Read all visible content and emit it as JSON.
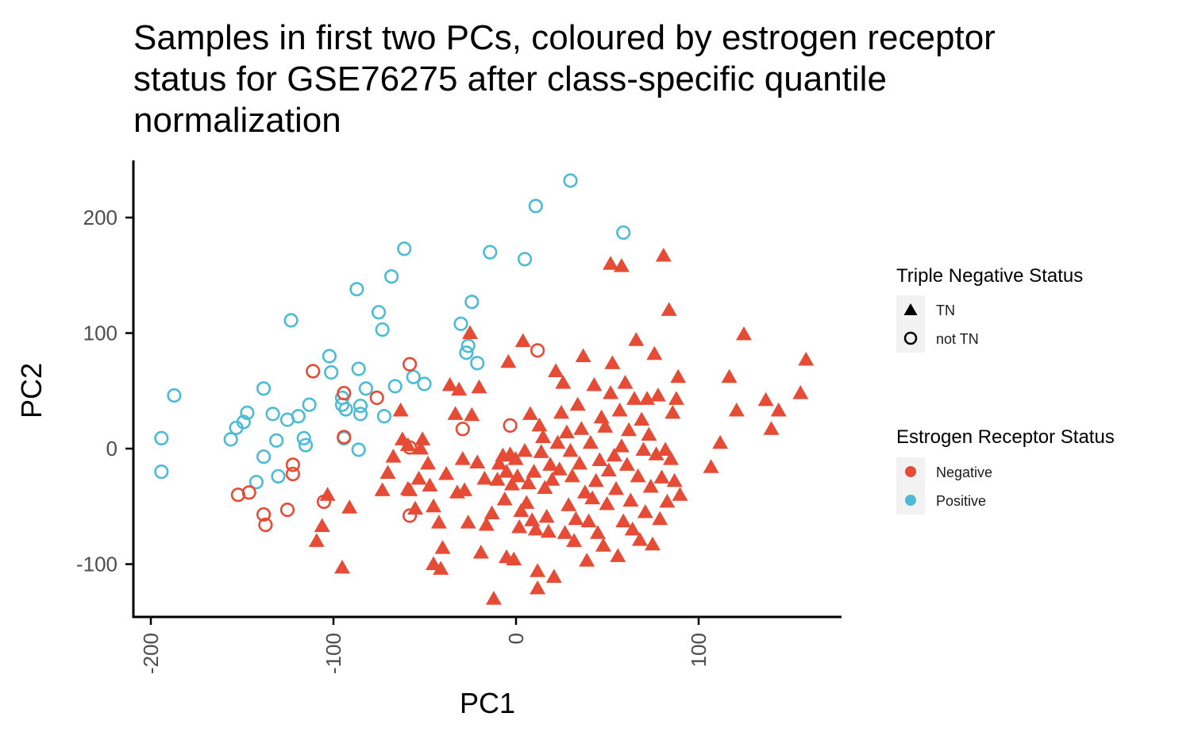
{
  "chart_data": {
    "type": "scatter",
    "title": "Samples in first two PCs, coloured by estrogen receptor status for GSE76275 after class-specific quantile normalization",
    "title_lines": [
      "Samples in first two PCs, coloured by estrogen receptor",
      "status for GSE76275 after class-specific quantile",
      "normalization"
    ],
    "xlabel": "PC1",
    "ylabel": "PC2",
    "xlim": [
      -205,
      180
    ],
    "ylim": [
      -145,
      250
    ],
    "x_ticks": [
      -200,
      -100,
      0,
      100
    ],
    "x_tick_labels": [
      "-200",
      "-100",
      "0",
      "100"
    ],
    "y_ticks": [
      -100,
      0,
      100,
      200
    ],
    "y_tick_labels": [
      "-100",
      "0",
      "100",
      "200"
    ],
    "grid": false,
    "legend_position": "right",
    "colors": {
      "Negative": "#E64B35",
      "Positive": "#4DBBD5"
    },
    "legends": [
      {
        "title": "Triple Negative Status",
        "entries": [
          {
            "label": "TN",
            "shape": "triangle"
          },
          {
            "label": "not TN",
            "shape": "circle-open"
          }
        ]
      },
      {
        "title": "Estrogen Receptor Status",
        "entries": [
          {
            "label": "Negative",
            "color": "#E64B35"
          },
          {
            "label": "Positive",
            "color": "#4DBBD5"
          }
        ]
      }
    ],
    "series": [
      {
        "er": "Positive",
        "tn": "not TN",
        "points": [
          [
            -189,
            -20
          ],
          [
            -189,
            9
          ],
          [
            -182,
            46
          ],
          [
            -151,
            8
          ],
          [
            -148,
            18
          ],
          [
            -144,
            23
          ],
          [
            -142,
            31
          ],
          [
            -137,
            -29
          ],
          [
            -133,
            -7
          ],
          [
            -133,
            52
          ],
          [
            -128,
            30
          ],
          [
            -126,
            7
          ],
          [
            -125,
            -24
          ],
          [
            -120,
            25
          ],
          [
            -118,
            111
          ],
          [
            -114,
            28
          ],
          [
            -111,
            9
          ],
          [
            -110,
            3
          ],
          [
            -108,
            38
          ],
          [
            -97,
            80
          ],
          [
            -96,
            66
          ],
          [
            -90,
            38
          ],
          [
            -90,
            44
          ],
          [
            -89,
            9
          ],
          [
            -88,
            34
          ],
          [
            -82,
            138
          ],
          [
            -81,
            69
          ],
          [
            -81,
            -1
          ],
          [
            -80,
            30
          ],
          [
            -80,
            37
          ],
          [
            -77,
            52
          ],
          [
            -70,
            118
          ],
          [
            -68,
            103
          ],
          [
            -67,
            28
          ],
          [
            -63,
            149
          ],
          [
            -61,
            54
          ],
          [
            -56,
            173
          ],
          [
            -51,
            62
          ],
          [
            -45,
            56
          ],
          [
            -25,
            108
          ],
          [
            -22,
            83
          ],
          [
            -21,
            89
          ],
          [
            -19,
            127
          ],
          [
            -16,
            74
          ],
          [
            -9,
            170
          ],
          [
            10,
            164
          ],
          [
            16,
            210
          ],
          [
            35,
            232
          ],
          [
            64,
            187
          ]
        ]
      },
      {
        "er": "Negative",
        "tn": "not TN",
        "points": [
          [
            -147,
            -40
          ],
          [
            -141,
            -38
          ],
          [
            -133,
            -57
          ],
          [
            -132,
            -66
          ],
          [
            -120,
            -53
          ],
          [
            -117,
            -22
          ],
          [
            -117,
            -14
          ],
          [
            -106,
            67
          ],
          [
            -100,
            -46
          ],
          [
            -89,
            48
          ],
          [
            -89,
            10
          ],
          [
            -71,
            44
          ],
          [
            -53,
            73
          ],
          [
            -53,
            1
          ],
          [
            -53,
            -58
          ],
          [
            -24,
            17
          ],
          [
            2,
            20
          ],
          [
            17,
            85
          ]
        ]
      },
      {
        "er": "Negative",
        "tn": "TN",
        "points": [
          [
            -104,
            -80
          ],
          [
            -101,
            -67
          ],
          [
            -98,
            -40
          ],
          [
            -90,
            -103
          ],
          [
            -86,
            -51
          ],
          [
            -68,
            -36
          ],
          [
            -65,
            -21
          ],
          [
            -62,
            -7
          ],
          [
            -58,
            33
          ],
          [
            -57,
            8
          ],
          [
            -54,
            3
          ],
          [
            -53,
            -36
          ],
          [
            -48,
            -26
          ],
          [
            -47,
            0
          ],
          [
            -46,
            8
          ],
          [
            -43,
            -13
          ],
          [
            -42,
            -32
          ],
          [
            -40,
            -50
          ],
          [
            -40,
            -100
          ],
          [
            -37,
            -64
          ],
          [
            -36,
            -104
          ],
          [
            -35,
            -86
          ],
          [
            -33,
            -22
          ],
          [
            -31,
            55
          ],
          [
            -28,
            30
          ],
          [
            -27,
            -38
          ],
          [
            -26,
            51
          ],
          [
            -24,
            -9
          ],
          [
            -23,
            -36
          ],
          [
            -21,
            -64
          ],
          [
            -20,
            100
          ],
          [
            -19,
            29
          ],
          [
            -16,
            -12
          ],
          [
            -15,
            53
          ],
          [
            -14,
            -90
          ],
          [
            -12,
            -26
          ],
          [
            -8,
            -56
          ],
          [
            -7,
            -130
          ],
          [
            -5,
            -27
          ],
          [
            -4,
            -13
          ],
          [
            -2,
            -6
          ],
          [
            -1,
            -44
          ],
          [
            0,
            -20
          ],
          [
            0,
            -94
          ],
          [
            1,
            75
          ],
          [
            2,
            -5
          ],
          [
            3,
            -31
          ],
          [
            4,
            -96
          ],
          [
            5,
            -9
          ],
          [
            6,
            -24
          ],
          [
            7,
            -68
          ],
          [
            8,
            -54
          ],
          [
            9,
            93
          ],
          [
            10,
            -2
          ],
          [
            11,
            -47
          ],
          [
            12,
            -30
          ],
          [
            13,
            30
          ],
          [
            14,
            -62
          ],
          [
            15,
            -20
          ],
          [
            16,
            -70
          ],
          [
            17,
            -106
          ],
          [
            17,
            -121
          ],
          [
            18,
            20
          ],
          [
            19,
            -3
          ],
          [
            20,
            10
          ],
          [
            21,
            -34
          ],
          [
            22,
            -59
          ],
          [
            23,
            -72
          ],
          [
            24,
            -14
          ],
          [
            25,
            -27
          ],
          [
            26,
            -111
          ],
          [
            27,
            67
          ],
          [
            28,
            5
          ],
          [
            29,
            -18
          ],
          [
            30,
            31
          ],
          [
            31,
            57
          ],
          [
            32,
            -73
          ],
          [
            33,
            14
          ],
          [
            34,
            -49
          ],
          [
            35,
            -2
          ],
          [
            36,
            -24
          ],
          [
            37,
            -80
          ],
          [
            38,
            -61
          ],
          [
            39,
            38
          ],
          [
            40,
            -13
          ],
          [
            41,
            17
          ],
          [
            42,
            80
          ],
          [
            43,
            -38
          ],
          [
            44,
            -97
          ],
          [
            45,
            -63
          ],
          [
            46,
            5
          ],
          [
            47,
            -43
          ],
          [
            48,
            55
          ],
          [
            49,
            -28
          ],
          [
            50,
            -73
          ],
          [
            51,
            -10
          ],
          [
            52,
            27
          ],
          [
            53,
            -84
          ],
          [
            54,
            19
          ],
          [
            55,
            -48
          ],
          [
            56,
            -19
          ],
          [
            57,
            48
          ],
          [
            58,
            74
          ],
          [
            59,
            -6
          ],
          [
            60,
            -35
          ],
          [
            61,
            -93
          ],
          [
            62,
            33
          ],
          [
            63,
            2
          ],
          [
            64,
            -63
          ],
          [
            65,
            57
          ],
          [
            66,
            -14
          ],
          [
            67,
            16
          ],
          [
            68,
            -45
          ],
          [
            69,
            -70
          ],
          [
            70,
            43
          ],
          [
            71,
            94
          ],
          [
            72,
            -24
          ],
          [
            73,
            -79
          ],
          [
            74,
            25
          ],
          [
            75,
            -1
          ],
          [
            76,
            -55
          ],
          [
            77,
            43
          ],
          [
            78,
            12
          ],
          [
            79,
            -33
          ],
          [
            80,
            -83
          ],
          [
            81,
            82
          ],
          [
            82,
            -5
          ],
          [
            83,
            46
          ],
          [
            84,
            -61
          ],
          [
            85,
            -25
          ],
          [
            86,
            167
          ],
          [
            87,
            -1
          ],
          [
            88,
            -46
          ],
          [
            89,
            120
          ],
          [
            90,
            -9
          ],
          [
            91,
            31
          ],
          [
            92,
            -28
          ],
          [
            93,
            43
          ],
          [
            94,
            62
          ],
          [
            95,
            -40
          ],
          [
            57,
            160
          ],
          [
            63,
            158
          ],
          [
            112,
            -16
          ],
          [
            117,
            5
          ],
          [
            122,
            62
          ],
          [
            126,
            33
          ],
          [
            130,
            99
          ],
          [
            142,
            42
          ],
          [
            145,
            17
          ],
          [
            149,
            33
          ],
          [
            161,
            48
          ],
          [
            164,
            77
          ],
          [
            -54,
            -35
          ],
          [
            -50,
            -52
          ],
          [
            -11,
            -66
          ]
        ]
      }
    ]
  }
}
